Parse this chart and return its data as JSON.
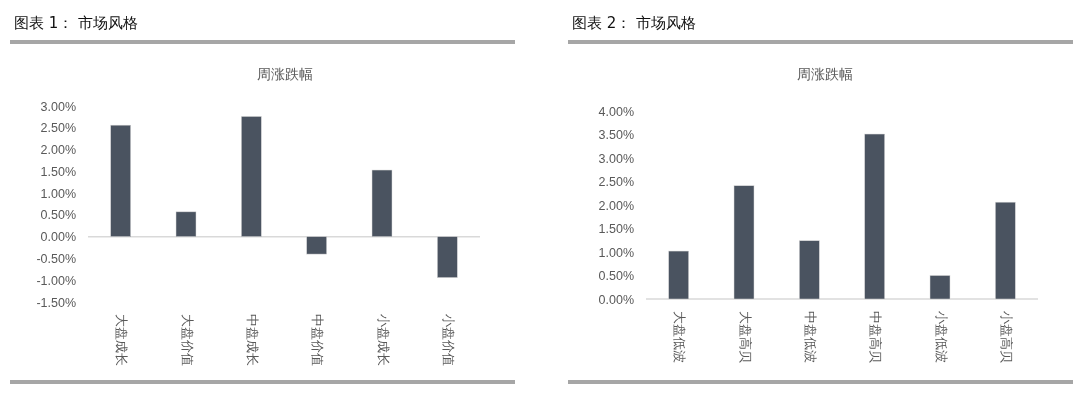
{
  "chart_data": [
    {
      "type": "bar",
      "title": "图表 1： 市场风格",
      "subtitle": "周涨跌幅",
      "categories": [
        "大盘成长",
        "大盘价值",
        "中盘成长",
        "中盘价值",
        "小盘成长",
        "小盘价值"
      ],
      "values": [
        2.56,
        0.57,
        2.76,
        -0.4,
        1.53,
        -0.94
      ],
      "color": "#4a5360",
      "ylim": [
        -1.5,
        3.0
      ],
      "yticks": [
        {
          "value": -1.5,
          "label": "-1.50%"
        },
        {
          "value": -1.0,
          "label": "-1.00%"
        },
        {
          "value": -0.5,
          "label": "-0.50%"
        },
        {
          "value": 0,
          "label": "0.00%"
        },
        {
          "value": 0.5,
          "label": "0.50%"
        },
        {
          "value": 1.0,
          "label": "1.00%"
        },
        {
          "value": 1.5,
          "label": "1.50%"
        },
        {
          "value": 2.0,
          "label": "2.00%"
        },
        {
          "value": 2.5,
          "label": "2.50%"
        },
        {
          "value": 3.0,
          "label": "3.00%"
        }
      ]
    },
    {
      "type": "bar",
      "title": "图表 2： 市场风格",
      "subtitle": "周涨跌幅",
      "categories": [
        "大盘低波",
        "大盘高贝",
        "中盘低波",
        "中盘高贝",
        "小盘低波",
        "小盘高贝"
      ],
      "values": [
        1.02,
        2.41,
        1.24,
        3.51,
        0.5,
        2.06
      ],
      "color": "#4a5360",
      "ylim": [
        0,
        4.0
      ],
      "yticks": [
        {
          "value": 0,
          "label": "0.00%"
        },
        {
          "value": 0.5,
          "label": "0.50%"
        },
        {
          "value": 1.0,
          "label": "1.00%"
        },
        {
          "value": 1.5,
          "label": "1.50%"
        },
        {
          "value": 2.0,
          "label": "2.00%"
        },
        {
          "value": 2.5,
          "label": "2.50%"
        },
        {
          "value": 3.0,
          "label": "3.00%"
        },
        {
          "value": 3.5,
          "label": "3.50%"
        },
        {
          "value": 4.0,
          "label": "4.00%"
        }
      ]
    }
  ]
}
